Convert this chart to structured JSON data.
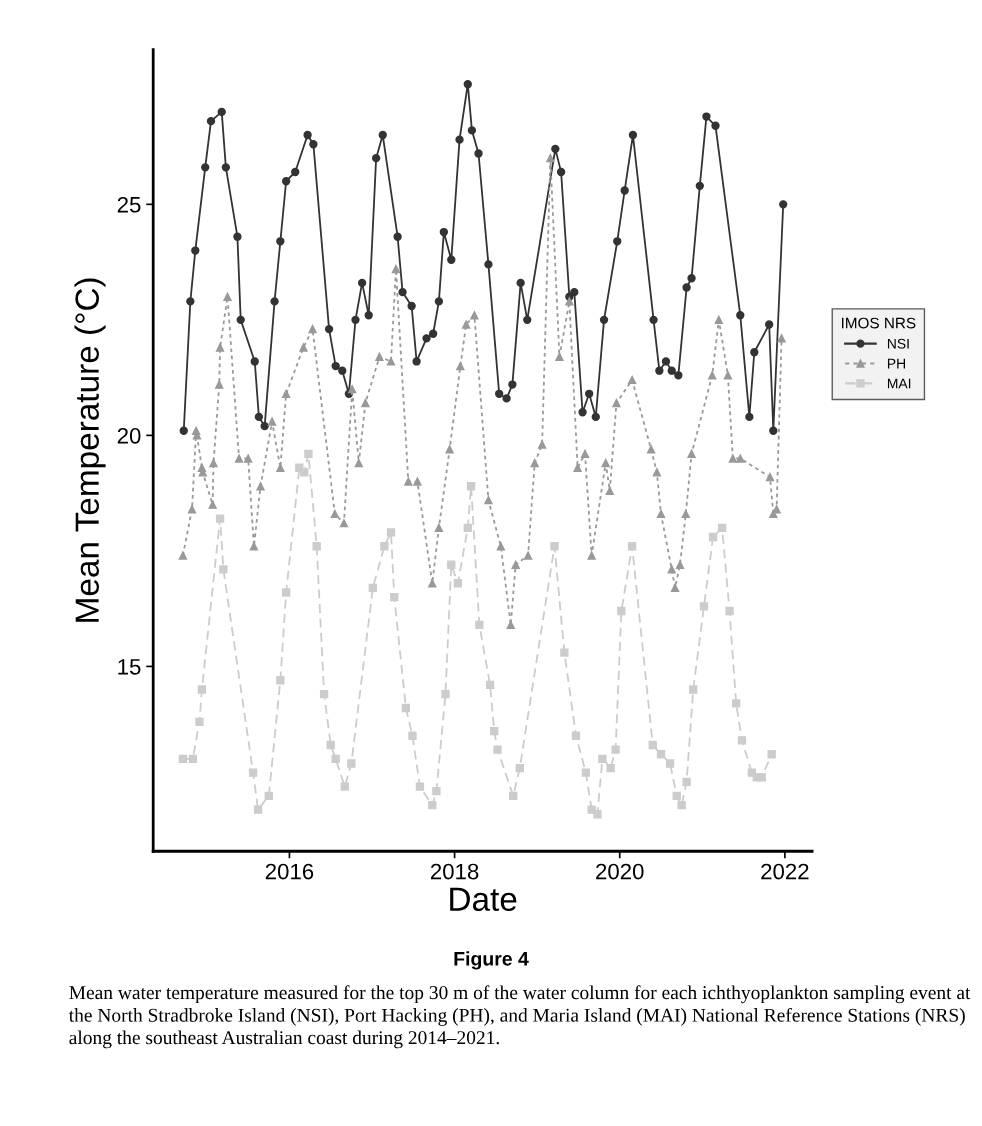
{
  "chart_data": {
    "type": "line",
    "title": "Figure 4",
    "xlabel": "Date",
    "ylabel": "Mean Temperature (°C)",
    "legend_title": "IMOS NRS",
    "annotations": [
      "Mean water temperature measured for the top 30 m of the water column for each ichthyoplankton sampling event at the North Stradbroke Island (NSI), Port Hacking (PH), and Maria Island (MAI) National Reference Stations (NRS) along the southeast Australian coast during 2014–2021."
    ],
    "xlim": [
      2014.35,
      2022.33
    ],
    "ylim": [
      11.0,
      28.35
    ],
    "xticks": [
      2016,
      2018,
      2020,
      2022
    ],
    "yticks": [
      15,
      20,
      25
    ],
    "grid": false,
    "legend": "right",
    "series": [
      {
        "name": "NSI",
        "color": "#333333",
        "marker": "circle",
        "line_style": "solid",
        "x": [
          2014.72,
          2014.8,
          2014.86,
          2014.98,
          2015.05,
          2015.18,
          2015.23,
          2015.37,
          2015.41,
          2015.58,
          2015.63,
          2015.7,
          2015.82,
          2015.89,
          2015.96,
          2016.07,
          2016.22,
          2016.29,
          2016.48,
          2016.56,
          2016.64,
          2016.72,
          2016.8,
          2016.88,
          2016.96,
          2017.05,
          2017.13,
          2017.31,
          2017.37,
          2017.48,
          2017.54,
          2017.66,
          2017.74,
          2017.81,
          2017.87,
          2017.96,
          2018.06,
          2018.16,
          2018.21,
          2018.29,
          2018.41,
          2018.54,
          2018.63,
          2018.7,
          2018.8,
          2018.88,
          2019.22,
          2019.29,
          2019.39,
          2019.45,
          2019.55,
          2019.63,
          2019.71,
          2019.81,
          2019.97,
          2020.06,
          2020.16,
          2020.41,
          2020.48,
          2020.56,
          2020.63,
          2020.71,
          2020.81,
          2020.87,
          2020.97,
          2021.05,
          2021.16,
          2021.46,
          2021.57,
          2021.63,
          2021.81,
          2021.86,
          2021.98
        ],
        "values": [
          20.1,
          22.9,
          24.0,
          25.8,
          26.8,
          27.0,
          25.8,
          24.3,
          22.5,
          21.6,
          20.4,
          20.2,
          22.9,
          24.2,
          25.5,
          25.7,
          26.5,
          26.3,
          22.3,
          21.5,
          21.4,
          20.9,
          22.5,
          23.3,
          22.6,
          26.0,
          26.5,
          24.3,
          23.1,
          22.8,
          21.6,
          22.1,
          22.2,
          22.9,
          24.4,
          23.8,
          26.4,
          27.6,
          26.6,
          26.1,
          23.7,
          20.9,
          20.8,
          21.1,
          23.3,
          22.5,
          26.2,
          25.7,
          23.0,
          23.1,
          20.5,
          20.9,
          20.4,
          22.5,
          24.2,
          25.3,
          26.5,
          22.5,
          21.4,
          21.6,
          21.4,
          21.3,
          23.2,
          23.4,
          25.4,
          26.9,
          26.7,
          22.6,
          20.4,
          21.8,
          22.4,
          20.1,
          25.0
        ]
      },
      {
        "name": "PH",
        "color": "#999999",
        "marker": "triangle",
        "line_style": "dotted",
        "x": [
          2014.71,
          2014.82,
          2014.87,
          2014.88,
          2014.94,
          2014.95,
          2015.07,
          2015.08,
          2015.15,
          2015.16,
          2015.25,
          2015.39,
          2015.5,
          2015.57,
          2015.65,
          2015.79,
          2015.89,
          2015.96,
          2016.17,
          2016.28,
          2016.55,
          2016.66,
          2016.76,
          2016.84,
          2016.92,
          2017.09,
          2017.23,
          2017.29,
          2017.44,
          2017.55,
          2017.73,
          2017.81,
          2017.94,
          2018.07,
          2018.14,
          2018.24,
          2018.41,
          2018.56,
          2018.68,
          2018.74,
          2018.89,
          2018.97,
          2019.06,
          2019.16,
          2019.27,
          2019.39,
          2019.49,
          2019.58,
          2019.66,
          2019.83,
          2019.88,
          2019.96,
          2020.15,
          2020.38,
          2020.45,
          2020.5,
          2020.63,
          2020.67,
          2020.73,
          2020.8,
          2020.87,
          2021.12,
          2021.2,
          2021.31,
          2021.37,
          2021.46,
          2021.82,
          2021.86,
          2021.9,
          2021.96
        ],
        "values": [
          17.4,
          18.4,
          20.1,
          20.0,
          19.3,
          19.2,
          18.5,
          19.4,
          21.1,
          21.9,
          23.0,
          19.5,
          19.5,
          17.6,
          18.9,
          20.3,
          19.3,
          20.9,
          21.9,
          22.3,
          18.3,
          18.1,
          21.0,
          19.4,
          20.7,
          21.7,
          21.6,
          23.6,
          19.0,
          19.0,
          16.8,
          18.0,
          19.7,
          21.5,
          22.4,
          22.6,
          18.6,
          17.6,
          15.9,
          17.2,
          17.4,
          19.4,
          19.8,
          26.0,
          21.7,
          22.9,
          19.3,
          19.6,
          17.4,
          19.4,
          18.8,
          20.7,
          21.2,
          19.7,
          19.2,
          18.3,
          17.1,
          16.7,
          17.2,
          18.3,
          19.6,
          21.3,
          22.5,
          21.3,
          19.5,
          19.5,
          19.1,
          18.3,
          18.4,
          22.1
        ]
      },
      {
        "name": "MAI",
        "color": "#cccccc",
        "marker": "square",
        "line_style": "dashed",
        "x": [
          2014.71,
          2014.83,
          2014.91,
          2014.94,
          2015.16,
          2015.2,
          2015.56,
          2015.62,
          2015.75,
          2015.89,
          2015.96,
          2016.12,
          2016.18,
          2016.23,
          2016.33,
          2016.42,
          2016.5,
          2016.56,
          2016.67,
          2016.75,
          2017.01,
          2017.15,
          2017.23,
          2017.27,
          2017.41,
          2017.49,
          2017.58,
          2017.73,
          2017.78,
          2017.89,
          2017.96,
          2018.04,
          2018.16,
          2018.2,
          2018.3,
          2018.43,
          2018.48,
          2018.52,
          2018.71,
          2018.79,
          2019.21,
          2019.33,
          2019.47,
          2019.59,
          2019.66,
          2019.73,
          2019.79,
          2019.89,
          2019.95,
          2020.02,
          2020.15,
          2020.4,
          2020.5,
          2020.61,
          2020.69,
          2020.75,
          2020.81,
          2020.89,
          2021.02,
          2021.13,
          2021.24,
          2021.33,
          2021.41,
          2021.48,
          2021.6,
          2021.66,
          2021.72,
          2021.84
        ],
        "values": [
          13.0,
          13.0,
          13.8,
          14.5,
          18.2,
          17.1,
          12.7,
          11.9,
          12.2,
          14.7,
          16.6,
          19.3,
          19.2,
          19.6,
          17.6,
          14.4,
          13.3,
          13.0,
          12.4,
          12.9,
          16.7,
          17.6,
          17.9,
          16.5,
          14.1,
          13.5,
          12.4,
          12.0,
          12.3,
          14.4,
          17.2,
          16.8,
          18.0,
          18.9,
          15.9,
          14.6,
          13.6,
          13.2,
          12.2,
          12.8,
          17.6,
          15.3,
          13.5,
          12.7,
          11.9,
          11.8,
          13.0,
          12.8,
          13.2,
          16.2,
          17.6,
          13.3,
          13.1,
          12.9,
          12.2,
          12.0,
          12.5,
          14.5,
          16.3,
          17.8,
          18.0,
          16.2,
          14.2,
          13.4,
          12.7,
          12.6,
          12.6,
          13.1
        ]
      }
    ]
  }
}
